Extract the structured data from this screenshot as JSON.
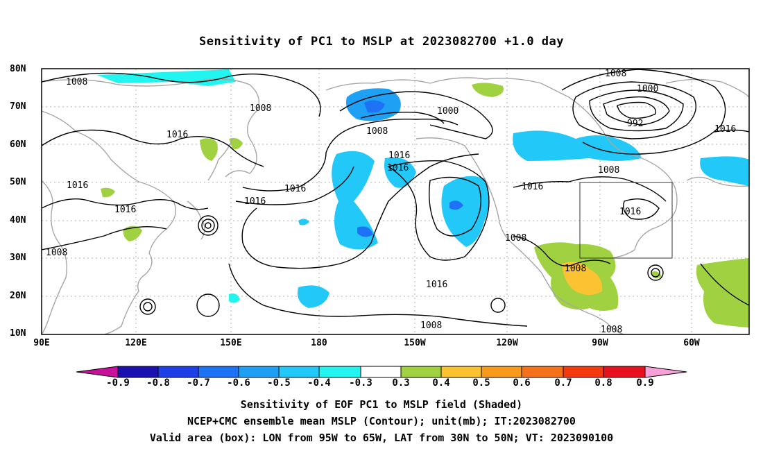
{
  "title": "Sensitivity of PC1 to MSLP at 2023082700 +1.0 day",
  "lat_labels": [
    "80N",
    "70N",
    "60N",
    "50N",
    "40N",
    "30N",
    "20N",
    "10N"
  ],
  "lon_labels": [
    "90E",
    "120E",
    "150E",
    "180",
    "150W",
    "120W",
    "90W",
    "60W"
  ],
  "contour_labels": [
    "1008",
    "1008",
    "1016",
    "1016",
    "1016",
    "1016",
    "1008",
    "1016",
    "1000",
    "1008",
    "1016",
    "1016",
    "1016",
    "1008",
    "1000",
    "992",
    "1008",
    "1016",
    "1016",
    "1008",
    "1008",
    "1016",
    "1008",
    "1008",
    "1008"
  ],
  "colorbar": {
    "labels": [
      "-0.9",
      "-0.8",
      "-0.7",
      "-0.6",
      "-0.5",
      "-0.4",
      "-0.3",
      "0.3",
      "0.4",
      "0.5",
      "0.6",
      "0.7",
      "0.8",
      "0.9"
    ],
    "colors": [
      "#c8109a",
      "#1a10b0",
      "#1c3fe8",
      "#1e72f5",
      "#1ea0f5",
      "#22c8f8",
      "#22f5f0",
      "#ffffff",
      "#9fd141",
      "#fbc331",
      "#f89a1c",
      "#f5721a",
      "#f53a10",
      "#e8121c",
      "#f8a0d8"
    ]
  },
  "captions": [
    "Sensitivity of EOF PC1 to MSLP field (Shaded)",
    "NCEP+CMC ensemble mean MSLP (Contour); unit(mb); IT:2023082700",
    "Valid area (box): LON from 95W to 65W, LAT from 30N to 50N; VT: 2023090100"
  ],
  "valid_box": {
    "lon_min": -95,
    "lon_max": -65,
    "lat_min": 30,
    "lat_max": 50
  }
}
